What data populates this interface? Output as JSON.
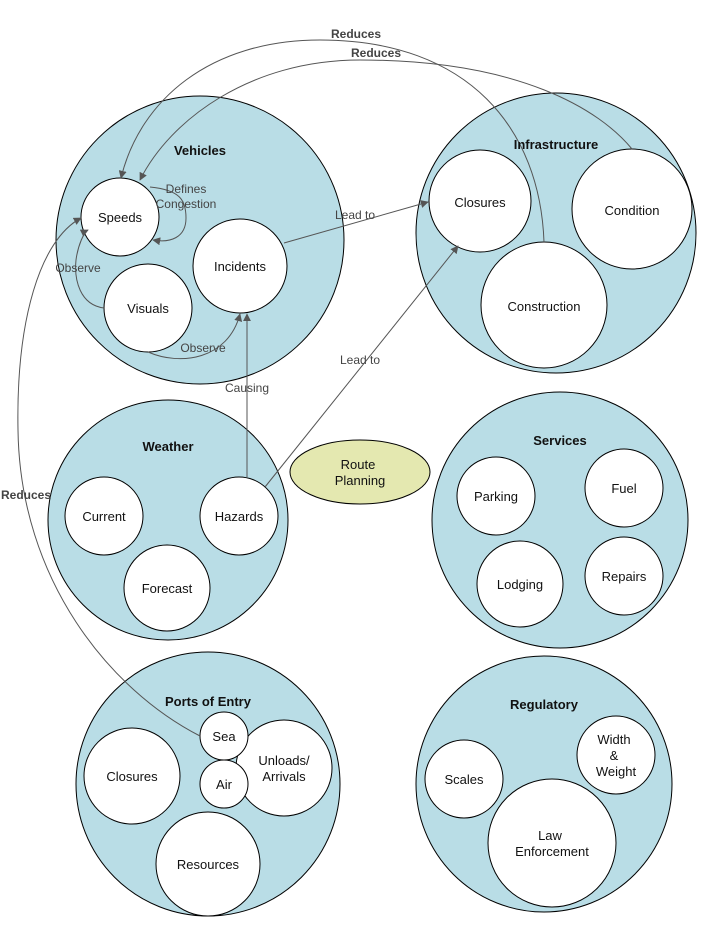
{
  "groups": {
    "vehicles": {
      "title": "Vehicles",
      "speeds": "Speeds",
      "incidents": "Incidents",
      "visuals": "Visuals"
    },
    "infrastructure": {
      "title": "Infrastructure",
      "closures": "Closures",
      "condition": "Condition",
      "construction": "Construction"
    },
    "weather": {
      "title": "Weather",
      "current": "Current",
      "hazards": "Hazards",
      "forecast": "Forecast"
    },
    "services": {
      "title": "Services",
      "parking": "Parking",
      "fuel": "Fuel",
      "lodging": "Lodging",
      "repairs": "Repairs"
    },
    "ports": {
      "title": "Ports of Entry",
      "sea": "Sea",
      "air": "Air",
      "closures": "Closures",
      "unloads_1": "Unloads/",
      "unloads_2": "Arrivals",
      "resources": "Resources"
    },
    "regulatory": {
      "title": "Regulatory",
      "scales": "Scales",
      "width_1": "Width",
      "width_2": "&",
      "width_3": "Weight",
      "law_1": "Law",
      "law_2": "Enforcement"
    }
  },
  "center": {
    "line1": "Route",
    "line2": "Planning"
  },
  "edges": {
    "reduces_top1": "Reduces",
    "reduces_top2": "Reduces",
    "reduces_left": "Reduces",
    "defines_1": "Defines",
    "defines_2": "Congestion",
    "observe_left": "Observe",
    "observe_bottom": "Observe",
    "lead_to_1": "Lead to",
    "lead_to_2": "Lead to",
    "causing": "Causing"
  }
}
